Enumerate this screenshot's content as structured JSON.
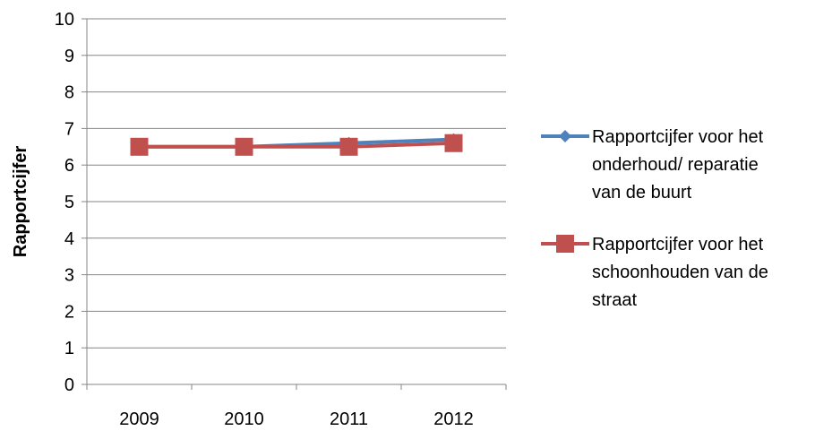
{
  "chart_data": {
    "type": "line",
    "title": "",
    "xlabel": "",
    "ylabel": "Rapportcijfer",
    "categories": [
      "2009",
      "2010",
      "2011",
      "2012"
    ],
    "ylim": [
      0,
      10
    ],
    "yticks": [
      "0",
      "1",
      "2",
      "3",
      "4",
      "5",
      "6",
      "7",
      "8",
      "9",
      "10"
    ],
    "grid": "horizontal",
    "legend_position": "right",
    "series": [
      {
        "name": "Rapportcijfer voor het onderhoud/ reparatie van de buurt",
        "name_lines": [
          "Rapportcijfer voor het",
          "onderhoud/ reparatie",
          "van de buurt"
        ],
        "values": [
          6.5,
          6.5,
          6.6,
          6.7
        ],
        "color": "#4F81BD",
        "marker": "diamond"
      },
      {
        "name": "Rapportcijfer voor het schoonhouden van de straat",
        "name_lines": [
          "Rapportcijfer voor het",
          "schoonhouden van de",
          "straat"
        ],
        "values": [
          6.5,
          6.5,
          6.5,
          6.6
        ],
        "color": "#C0504D",
        "marker": "square"
      }
    ]
  }
}
